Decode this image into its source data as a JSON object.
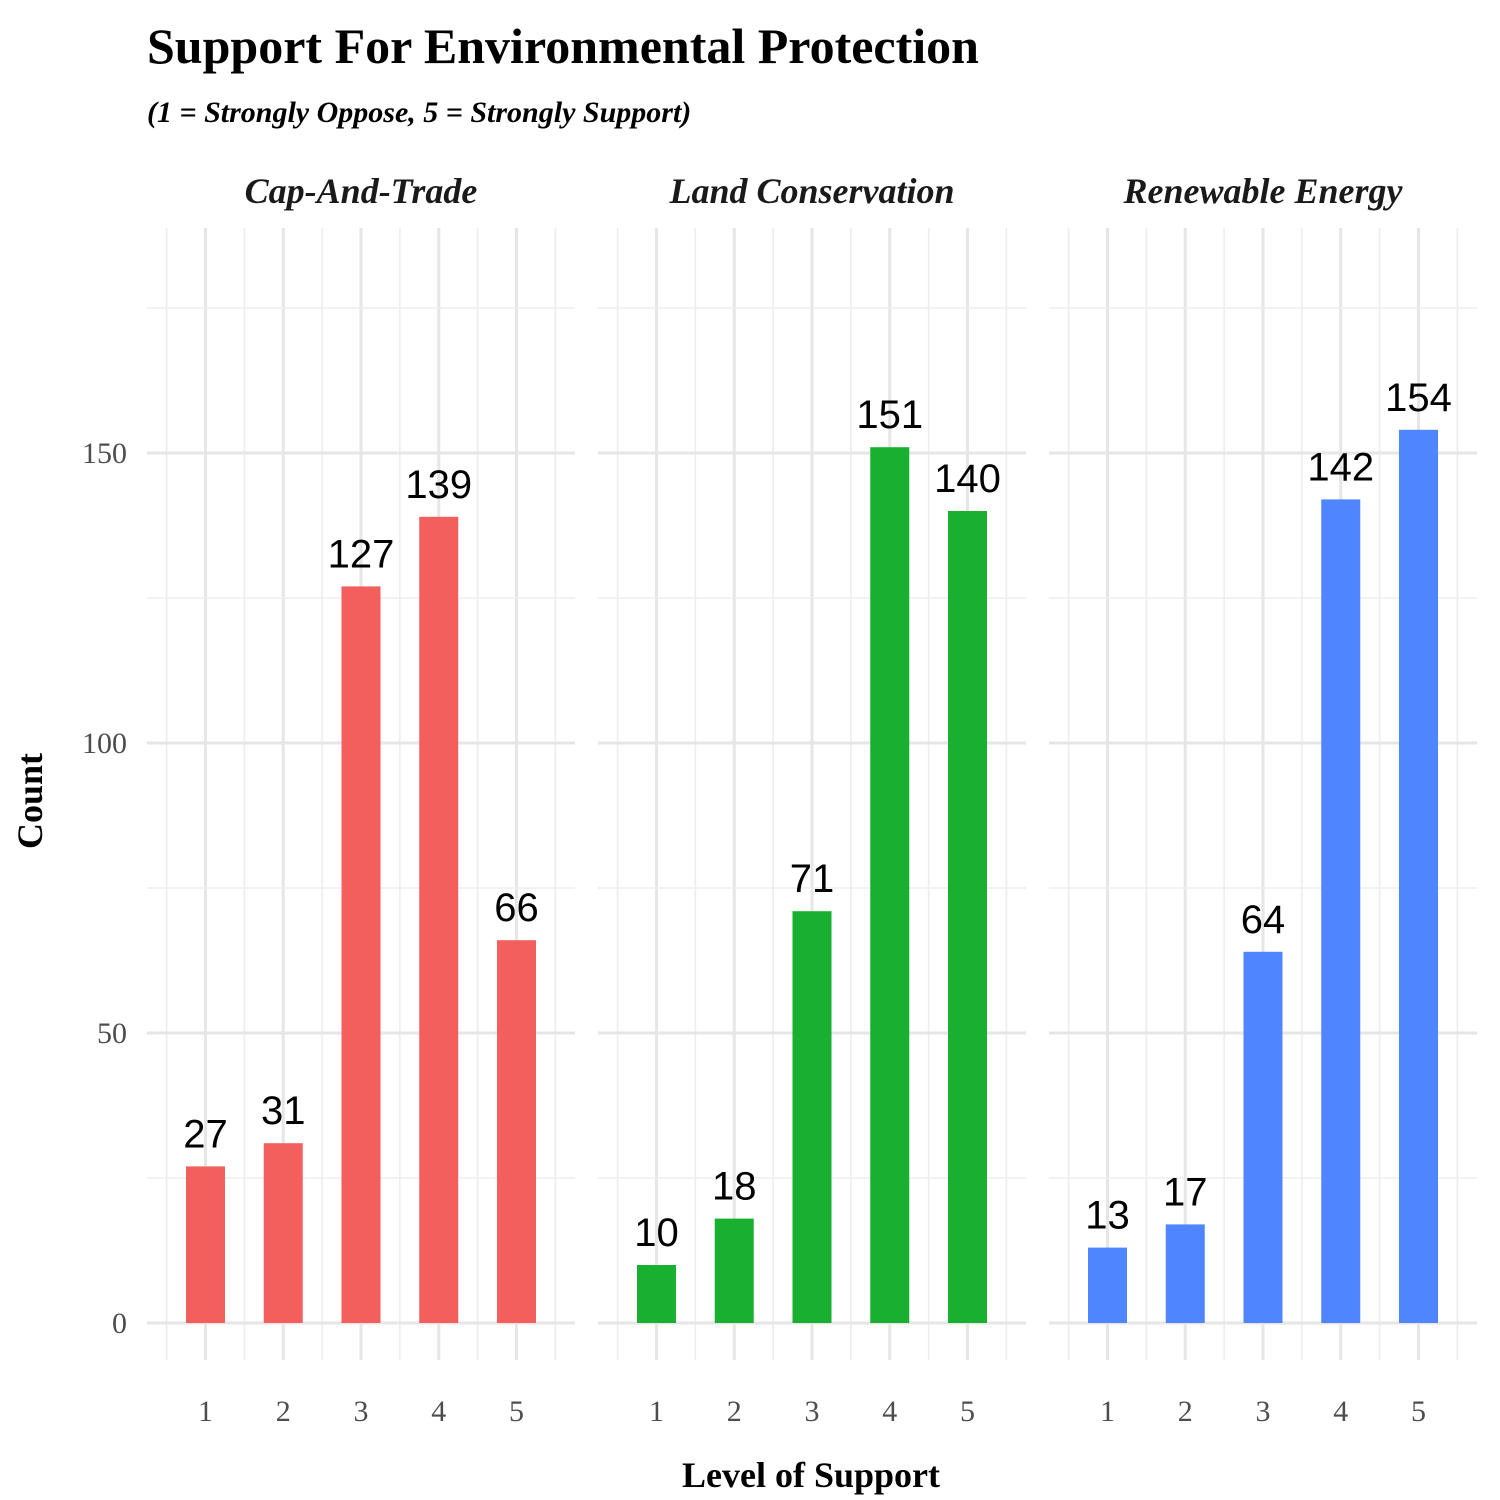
{
  "chart_data": {
    "type": "bar",
    "title": "Support For Environmental Protection",
    "subtitle": "(1 = Strongly Oppose, 5 = Strongly Support)",
    "xlabel": "Level of Support",
    "ylabel": "Count",
    "ylim": [
      0,
      180
    ],
    "y_ticks": [
      0,
      50,
      100,
      150
    ],
    "categories": [
      "1",
      "2",
      "3",
      "4",
      "5"
    ],
    "grid": true,
    "legend": "none",
    "facets": [
      {
        "name": "Cap-And-Trade",
        "color": "#F25F5C",
        "values": [
          27,
          31,
          127,
          139,
          66
        ]
      },
      {
        "name": "Land Conservation",
        "color": "#19B032",
        "values": [
          10,
          18,
          71,
          151,
          140
        ]
      },
      {
        "name": "Renewable Energy",
        "color": "#4F86FF",
        "values": [
          13,
          17,
          64,
          142,
          154
        ]
      }
    ]
  }
}
